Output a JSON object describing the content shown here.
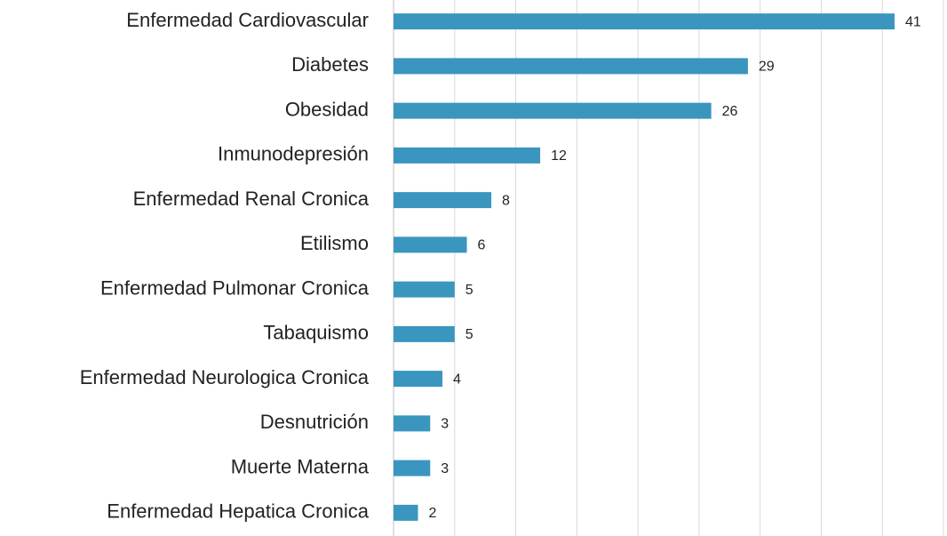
{
  "chart_data": {
    "type": "barh",
    "categories": [
      "Enfermedad Cardiovascular",
      "Diabetes",
      "Obesidad",
      "Inmunodepresión",
      "Enfermedad Renal Cronica",
      "Etilismo",
      "Enfermedad Pulmonar Cronica",
      "Tabaquismo",
      "Enfermedad Neurologica Cronica",
      "Desnutrición",
      "Muerte Materna",
      "Enfermedad Hepatica Cronica"
    ],
    "values": [
      41,
      29,
      26,
      12,
      8,
      6,
      5,
      5,
      4,
      3,
      3,
      2
    ],
    "color": "#3a96bf",
    "xlim": [
      0,
      45
    ],
    "xticks": [
      0,
      5,
      10,
      15,
      20,
      25,
      30,
      35,
      40,
      45
    ],
    "grid": true
  }
}
